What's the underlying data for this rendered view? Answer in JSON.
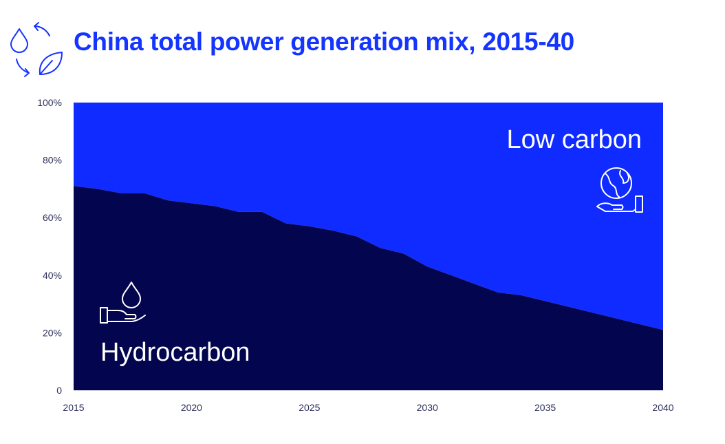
{
  "header": {
    "title": "China total power generation mix, 2015-40",
    "icon": "water-leaf-cycle-icon"
  },
  "colors": {
    "title": "#1434ff",
    "low_carbon": "#0f2bff",
    "hydrocarbon": "#03054f",
    "axis_text": "#2b2e5a",
    "icon_stroke": "#1434ff"
  },
  "chart_data": {
    "type": "area",
    "title": "China total power generation mix, 2015-40",
    "xlabel": "",
    "ylabel": "",
    "x": [
      2015,
      2016,
      2017,
      2018,
      2019,
      2020,
      2021,
      2022,
      2023,
      2024,
      2025,
      2026,
      2027,
      2028,
      2029,
      2030,
      2031,
      2032,
      2033,
      2034,
      2035,
      2036,
      2037,
      2038,
      2039,
      2040
    ],
    "series": [
      {
        "name": "Hydrocarbon",
        "values": [
          71,
          70,
          68.5,
          68.5,
          66,
          65,
          64,
          62,
          62,
          58,
          57,
          55.5,
          53.5,
          49.5,
          47.5,
          43,
          40,
          37,
          34,
          33,
          31,
          29,
          27,
          25,
          23,
          21
        ]
      },
      {
        "name": "Low carbon",
        "values": [
          29,
          30,
          31.5,
          31.5,
          34,
          35,
          36,
          38,
          38,
          42,
          43,
          44.5,
          46.5,
          50.5,
          52.5,
          57,
          60,
          63,
          66,
          67,
          69,
          71,
          73,
          75,
          77,
          79
        ]
      }
    ],
    "stacked": true,
    "xlim": [
      2015,
      2040
    ],
    "ylim": [
      0,
      100
    ],
    "x_ticks": [
      "2015",
      "2020",
      "2025",
      "2030",
      "2035",
      "2040"
    ],
    "x_tick_values": [
      2015,
      2020,
      2025,
      2030,
      2035,
      2040
    ],
    "y_ticks": [
      "0",
      "20%",
      "40%",
      "60%",
      "80%",
      "100%"
    ],
    "y_tick_values": [
      0,
      20,
      40,
      60,
      80,
      100
    ],
    "grid": false,
    "legend": "none",
    "annotations": [
      {
        "text": "Low carbon",
        "icon": "globe-in-hand-icon"
      },
      {
        "text": "Hydrocarbon",
        "icon": "oil-drop-in-hand-icon"
      }
    ]
  }
}
